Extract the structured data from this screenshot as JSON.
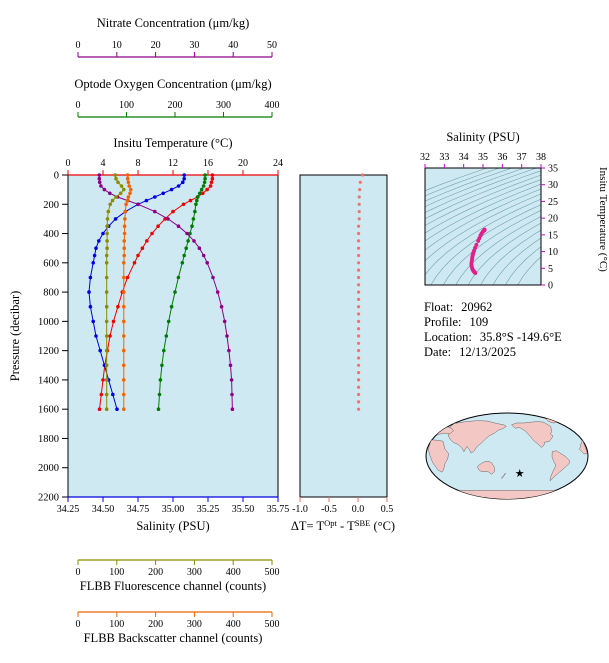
{
  "colors": {
    "panel_bg": "#CFE9F2",
    "nitrate": "#8B008B",
    "oxygen": "#007C00",
    "temperature": "#EE0000",
    "salinity": "#0000E0",
    "fluorescence": "#8C8C00",
    "backscatter": "#EE6600",
    "delta_t": "#F4726B",
    "ts_magenta": "#CC00CC",
    "ts_points": "#E0218A",
    "contour": "#6FA0AC",
    "land": "#F3C8C4",
    "star": "#3333CC"
  },
  "info": {
    "float_label": "Float:",
    "float_value": "20962",
    "profile_label": "Profile:",
    "profile_value": "109",
    "location_label": "Location:",
    "location_value": "35.8°S -149.6°E",
    "date_label": "Date:",
    "date_value": "12/13/2025"
  },
  "map": {
    "star_glyph": "★",
    "star": {
      "lat": -35.8,
      "lon": -149.6
    }
  },
  "chart_data": [
    {
      "id": "profiles",
      "type": "line",
      "ylabel": "Pressure (decibar)",
      "ylim": [
        0,
        2200
      ],
      "yticks": [
        0,
        200,
        400,
        600,
        800,
        1000,
        1200,
        1400,
        1600,
        1800,
        2000,
        2200
      ],
      "axes": [
        {
          "name": "nitrate",
          "title": "Nitrate Concentration (μm/kg)",
          "range": [
            0,
            50
          ],
          "ticks": [
            0,
            10,
            20,
            30,
            40,
            50
          ]
        },
        {
          "name": "oxygen",
          "title": "Optode Oxygen Concentration (μm/kg)",
          "range": [
            0,
            400
          ],
          "ticks": [
            0,
            100,
            200,
            300,
            400
          ]
        },
        {
          "name": "temperature",
          "title": "Insitu Temperature (°C)",
          "range": [
            0,
            24
          ],
          "ticks": [
            0,
            4,
            8,
            12,
            16,
            20,
            24
          ]
        },
        {
          "name": "salinity",
          "title": "Salinity (PSU)",
          "range": [
            34.25,
            35.75
          ],
          "ticks": [
            34.25,
            34.5,
            34.75,
            35,
            35.25,
            35.5,
            35.75
          ]
        },
        {
          "name": "fluorescence",
          "title": "FLBB Fluorescence channel (counts)",
          "range": [
            0,
            500
          ],
          "ticks": [
            0,
            100,
            200,
            300,
            400,
            500
          ]
        },
        {
          "name": "backscatter",
          "title": "FLBB Backscatter channel (counts)",
          "range": [
            0,
            500
          ],
          "ticks": [
            0,
            100,
            200,
            300,
            400,
            500
          ]
        }
      ],
      "series": [
        {
          "name": "Insitu Temperature",
          "axis": "temperature",
          "points": [
            [
              0,
              16.5
            ],
            [
              25,
              16.5
            ],
            [
              50,
              16.4
            ],
            [
              75,
              16.3
            ],
            [
              100,
              15.9
            ],
            [
              125,
              15.4
            ],
            [
              150,
              14.8
            ],
            [
              175,
              14.0
            ],
            [
              200,
              13.2
            ],
            [
              250,
              12.0
            ],
            [
              300,
              11.1
            ],
            [
              350,
              10.3
            ],
            [
              400,
              9.6
            ],
            [
              450,
              9.0
            ],
            [
              500,
              8.5
            ],
            [
              550,
              8.0
            ],
            [
              600,
              7.6
            ],
            [
              700,
              6.8
            ],
            [
              800,
              6.2
            ],
            [
              900,
              5.7
            ],
            [
              1000,
              5.2
            ],
            [
              1100,
              4.8
            ],
            [
              1200,
              4.5
            ],
            [
              1300,
              4.2
            ],
            [
              1400,
              4.0
            ],
            [
              1500,
              3.8
            ],
            [
              1600,
              3.6
            ]
          ]
        },
        {
          "name": "Salinity",
          "axis": "salinity",
          "points": [
            [
              0,
              35.08
            ],
            [
              25,
              35.08
            ],
            [
              50,
              35.07
            ],
            [
              75,
              35.04
            ],
            [
              100,
              34.99
            ],
            [
              125,
              34.93
            ],
            [
              150,
              34.87
            ],
            [
              175,
              34.81
            ],
            [
              200,
              34.75
            ],
            [
              250,
              34.66
            ],
            [
              300,
              34.59
            ],
            [
              350,
              34.54
            ],
            [
              400,
              34.5
            ],
            [
              450,
              34.47
            ],
            [
              500,
              34.45
            ],
            [
              550,
              34.44
            ],
            [
              600,
              34.43
            ],
            [
              700,
              34.41
            ],
            [
              800,
              34.4
            ],
            [
              900,
              34.41
            ],
            [
              1000,
              34.43
            ],
            [
              1100,
              34.45
            ],
            [
              1200,
              34.48
            ],
            [
              1300,
              34.51
            ],
            [
              1400,
              34.54
            ],
            [
              1500,
              34.57
            ],
            [
              1600,
              34.6
            ]
          ]
        },
        {
          "name": "Optode Oxygen Concentration",
          "axis": "oxygen",
          "points": [
            [
              0,
              262
            ],
            [
              25,
              262
            ],
            [
              50,
              261
            ],
            [
              75,
              259
            ],
            [
              100,
              255
            ],
            [
              125,
              251
            ],
            [
              150,
              247
            ],
            [
              175,
              245
            ],
            [
              200,
              243
            ],
            [
              250,
              241
            ],
            [
              300,
              238
            ],
            [
              350,
              235
            ],
            [
              400,
              231
            ],
            [
              450,
              227
            ],
            [
              500,
              223
            ],
            [
              550,
              219
            ],
            [
              600,
              215
            ],
            [
              700,
              207
            ],
            [
              800,
              200
            ],
            [
              900,
              193
            ],
            [
              1000,
              187
            ],
            [
              1100,
              182
            ],
            [
              1200,
              177
            ],
            [
              1300,
              173
            ],
            [
              1400,
              170
            ],
            [
              1500,
              168
            ],
            [
              1600,
              166
            ]
          ]
        },
        {
          "name": "Nitrate Concentration",
          "axis": "nitrate",
          "points": [
            [
              0,
              5.5
            ],
            [
              25,
              5.5
            ],
            [
              50,
              5.6
            ],
            [
              75,
              5.9
            ],
            [
              100,
              6.8
            ],
            [
              125,
              8.2
            ],
            [
              150,
              10.2
            ],
            [
              175,
              12.8
            ],
            [
              200,
              15.5
            ],
            [
              250,
              19.8
            ],
            [
              300,
              23.2
            ],
            [
              350,
              25.9
            ],
            [
              400,
              28.1
            ],
            [
              450,
              29.9
            ],
            [
              500,
              31.3
            ],
            [
              550,
              32.4
            ],
            [
              600,
              33.3
            ],
            [
              700,
              34.8
            ],
            [
              800,
              36.0
            ],
            [
              900,
              37.0
            ],
            [
              1000,
              37.8
            ],
            [
              1100,
              38.4
            ],
            [
              1200,
              38.9
            ],
            [
              1300,
              39.3
            ],
            [
              1400,
              39.6
            ],
            [
              1500,
              39.7
            ],
            [
              1600,
              39.8
            ]
          ]
        },
        {
          "name": "FLBB Fluorescence channel",
          "axis": "fluorescence",
          "points": [
            [
              0,
              96
            ],
            [
              25,
              98
            ],
            [
              50,
              103
            ],
            [
              75,
              112
            ],
            [
              100,
              118
            ],
            [
              125,
              110
            ],
            [
              150,
              98
            ],
            [
              175,
              89
            ],
            [
              200,
              83
            ],
            [
              250,
              78
            ],
            [
              300,
              76
            ],
            [
              350,
              75
            ],
            [
              400,
              75
            ],
            [
              450,
              75
            ],
            [
              500,
              75
            ],
            [
              550,
              74
            ],
            [
              600,
              74
            ],
            [
              700,
              74
            ],
            [
              800,
              74
            ],
            [
              900,
              74
            ],
            [
              1000,
              74
            ],
            [
              1100,
              74
            ],
            [
              1200,
              74
            ],
            [
              1300,
              74
            ],
            [
              1400,
              74
            ],
            [
              1500,
              74
            ],
            [
              1600,
              74
            ]
          ]
        },
        {
          "name": "FLBB Backscatter channel",
          "axis": "backscatter",
          "points": [
            [
              0,
              128
            ],
            [
              25,
              128
            ],
            [
              50,
              130
            ],
            [
              75,
              132
            ],
            [
              100,
              136
            ],
            [
              125,
              134
            ],
            [
              150,
              130
            ],
            [
              175,
              127
            ],
            [
              200,
              124
            ],
            [
              250,
              122
            ],
            [
              300,
              121
            ],
            [
              350,
              120
            ],
            [
              400,
              120
            ],
            [
              450,
              119
            ],
            [
              500,
              119
            ],
            [
              550,
              119
            ],
            [
              600,
              118
            ],
            [
              700,
              118
            ],
            [
              800,
              118
            ],
            [
              900,
              118
            ],
            [
              1000,
              118
            ],
            [
              1100,
              118
            ],
            [
              1200,
              118
            ],
            [
              1300,
              118
            ],
            [
              1400,
              118
            ],
            [
              1500,
              118
            ],
            [
              1600,
              118
            ]
          ]
        }
      ]
    },
    {
      "id": "delta_t",
      "type": "scatter",
      "title_parts": [
        "ΔT= T",
        "Opt",
        " - T",
        "SBE",
        " (°C)"
      ],
      "xlim": [
        -1.0,
        0.5
      ],
      "xticks": [
        -1.0,
        -0.5,
        0.0,
        0.5
      ],
      "ylim": [
        0,
        2200
      ],
      "points": [
        [
          0,
          0.08
        ],
        [
          50,
          0.04
        ],
        [
          100,
          0.03
        ],
        [
          150,
          0.02
        ],
        [
          200,
          0.02
        ],
        [
          250,
          0.02
        ],
        [
          300,
          0.02
        ],
        [
          350,
          0.01
        ],
        [
          400,
          0.01
        ],
        [
          450,
          0.01
        ],
        [
          500,
          0.01
        ],
        [
          550,
          0.01
        ],
        [
          600,
          0.01
        ],
        [
          650,
          0.01
        ],
        [
          700,
          0.01
        ],
        [
          750,
          0.01
        ],
        [
          800,
          0.01
        ],
        [
          850,
          0.01
        ],
        [
          900,
          0.01
        ],
        [
          950,
          0.01
        ],
        [
          1000,
          0.01
        ],
        [
          1050,
          0.01
        ],
        [
          1100,
          0.01
        ],
        [
          1150,
          0.01
        ],
        [
          1200,
          0.01
        ],
        [
          1250,
          0.01
        ],
        [
          1300,
          0.01
        ],
        [
          1350,
          0.01
        ],
        [
          1400,
          0.01
        ],
        [
          1450,
          0.01
        ],
        [
          1500,
          0.01
        ],
        [
          1550,
          0.01
        ],
        [
          1600,
          0.01
        ]
      ]
    },
    {
      "id": "ts_diagram",
      "type": "scatter",
      "xlabel": "Salinity (PSU)",
      "ylabel": "Insitu Temperature (°C)",
      "xlim": [
        32,
        38
      ],
      "xticks": [
        32,
        33,
        34,
        35,
        36,
        37,
        38
      ],
      "ylim": [
        0,
        35
      ],
      "yticks": [
        0,
        5,
        10,
        15,
        20,
        25,
        30,
        35
      ],
      "legend": "isopycnal contours in background",
      "points": [
        [
          35.08,
          16.5
        ],
        [
          35.08,
          16.5
        ],
        [
          35.07,
          16.4
        ],
        [
          35.04,
          16.3
        ],
        [
          34.99,
          15.9
        ],
        [
          34.93,
          15.4
        ],
        [
          34.87,
          14.8
        ],
        [
          34.81,
          14.0
        ],
        [
          34.75,
          13.2
        ],
        [
          34.66,
          12.0
        ],
        [
          34.59,
          11.1
        ],
        [
          34.54,
          10.3
        ],
        [
          34.5,
          9.6
        ],
        [
          34.47,
          9.0
        ],
        [
          34.45,
          8.5
        ],
        [
          34.44,
          8.0
        ],
        [
          34.43,
          7.6
        ],
        [
          34.41,
          6.8
        ],
        [
          34.4,
          6.2
        ],
        [
          34.41,
          5.7
        ],
        [
          34.43,
          5.2
        ],
        [
          34.45,
          4.8
        ],
        [
          34.48,
          4.5
        ],
        [
          34.51,
          4.2
        ],
        [
          34.54,
          4.0
        ],
        [
          34.57,
          3.8
        ],
        [
          34.6,
          3.6
        ]
      ]
    }
  ]
}
